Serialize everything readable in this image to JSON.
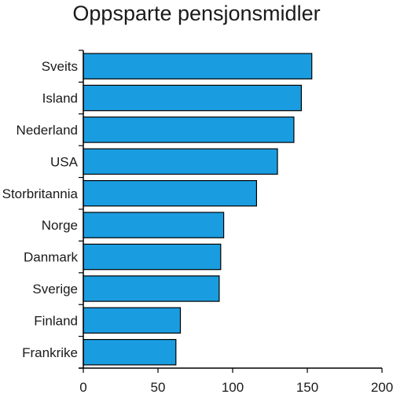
{
  "chart_data": {
    "type": "bar",
    "orientation": "horizontal",
    "title": "Oppsparte pensjonsmidler",
    "categories": [
      "Sveits",
      "Island",
      "Nederland",
      "USA",
      "Storbritannia",
      "Norge",
      "Danmark",
      "Sverige",
      "Finland",
      "Frankrike"
    ],
    "values": [
      153,
      146,
      141,
      130,
      116,
      94,
      92,
      91,
      65,
      62
    ],
    "xlim": [
      0,
      200
    ],
    "xticks": [
      "0",
      "50",
      "100",
      "150",
      "200"
    ],
    "xlabel": "",
    "ylabel": "",
    "grid": false,
    "bar_color": "#1a9de0",
    "bar_edge_color": "#000000"
  }
}
